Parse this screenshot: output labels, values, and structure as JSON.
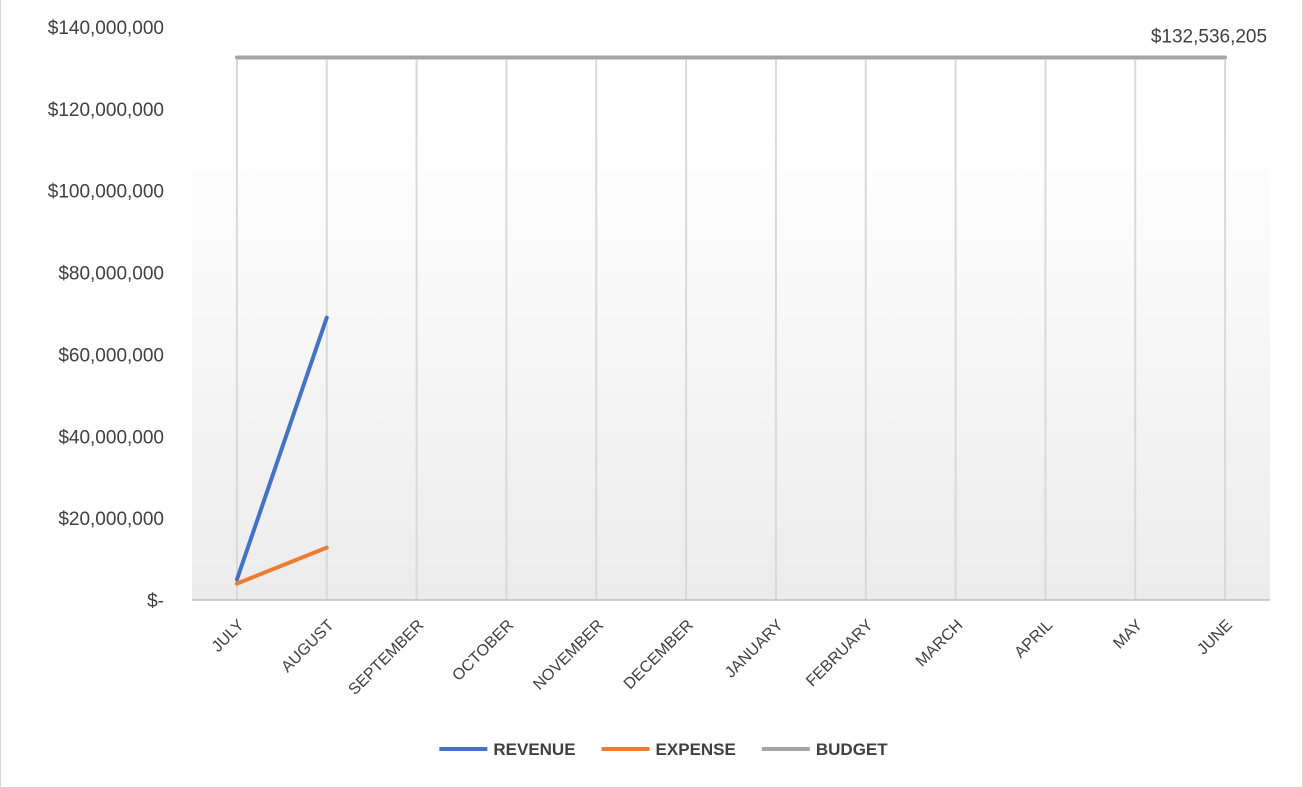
{
  "chart_data": {
    "type": "line",
    "title": "",
    "xlabel": "",
    "ylabel": "",
    "categories": [
      "JULY",
      "AUGUST",
      "SEPTEMBER",
      "OCTOBER",
      "NOVEMBER",
      "DECEMBER",
      "JANUARY",
      "FEBRUARY",
      "MARCH",
      "APRIL",
      "MAY",
      "JUNE"
    ],
    "ylim": [
      0,
      140000000
    ],
    "y_ticks": [
      {
        "value": 0,
        "label": "$-"
      },
      {
        "value": 20000000,
        "label": "$20,000,000"
      },
      {
        "value": 40000000,
        "label": "$40,000,000"
      },
      {
        "value": 60000000,
        "label": "$60,000,000"
      },
      {
        "value": 80000000,
        "label": "$80,000,000"
      },
      {
        "value": 100000000,
        "label": "$100,000,000"
      },
      {
        "value": 120000000,
        "label": "$120,000,000"
      },
      {
        "value": 140000000,
        "label": "$140,000,000"
      }
    ],
    "series": [
      {
        "name": "REVENUE",
        "color": "#4472C4",
        "values": [
          5000000,
          69000000,
          null,
          null,
          null,
          null,
          null,
          null,
          null,
          null,
          null,
          null
        ]
      },
      {
        "name": "EXPENSE",
        "color": "#ED7D31",
        "values": [
          4000000,
          12800000,
          null,
          null,
          null,
          null,
          null,
          null,
          null,
          null,
          null,
          null
        ]
      },
      {
        "name": "BUDGET",
        "color": "#A5A5A5",
        "values": [
          132536205,
          132536205,
          132536205,
          132536205,
          132536205,
          132536205,
          132536205,
          132536205,
          132536205,
          132536205,
          132536205,
          132536205
        ]
      }
    ],
    "annotations": [
      {
        "series": "BUDGET",
        "category": "JUNE",
        "text": "$132,536,205"
      }
    ],
    "grid": {
      "vertical": true,
      "horizontal": false
    },
    "legend": "bottom"
  }
}
